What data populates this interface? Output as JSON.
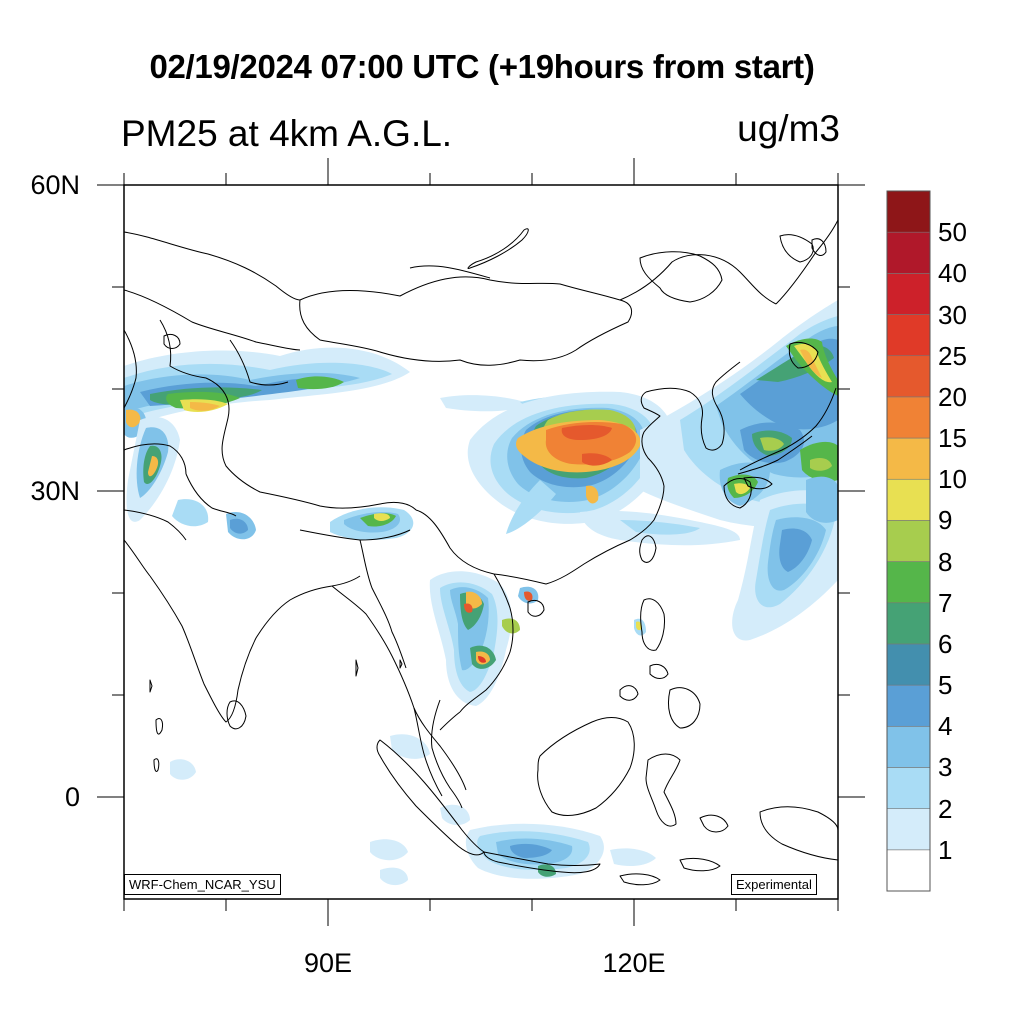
{
  "header": {
    "title": "02/19/2024 07:00 UTC (+19hours from start)",
    "left_subtitle": "PM25 at 4km A.G.L.",
    "right_subtitle": "ug/m3"
  },
  "axes": {
    "lat_labels": [
      "60N",
      "30N",
      "0"
    ],
    "lon_labels": [
      "90E",
      "120E"
    ]
  },
  "map": {
    "lon_range": [
      70,
      140
    ],
    "lat_range": [
      -10,
      60
    ],
    "projection": "cylindrical-equidistant",
    "model_tag": "WRF-Chem_NCAR_YSU",
    "status_tag": "Experimental"
  },
  "legend": {
    "labels": [
      "1",
      "2",
      "3",
      "4",
      "5",
      "6",
      "7",
      "8",
      "9",
      "10",
      "15",
      "20",
      "25",
      "30",
      "40",
      "50"
    ],
    "colors": [
      "#ffffff",
      "#d4ecfa",
      "#a9dcf5",
      "#80c2e9",
      "#5a9fd6",
      "#438fae",
      "#45a275",
      "#55b64a",
      "#a7cd4e",
      "#e8e052",
      "#f4b947",
      "#f08235",
      "#e5592d",
      "#e03a28",
      "#cd212a",
      "#b0182a",
      "#8e1618"
    ]
  }
}
